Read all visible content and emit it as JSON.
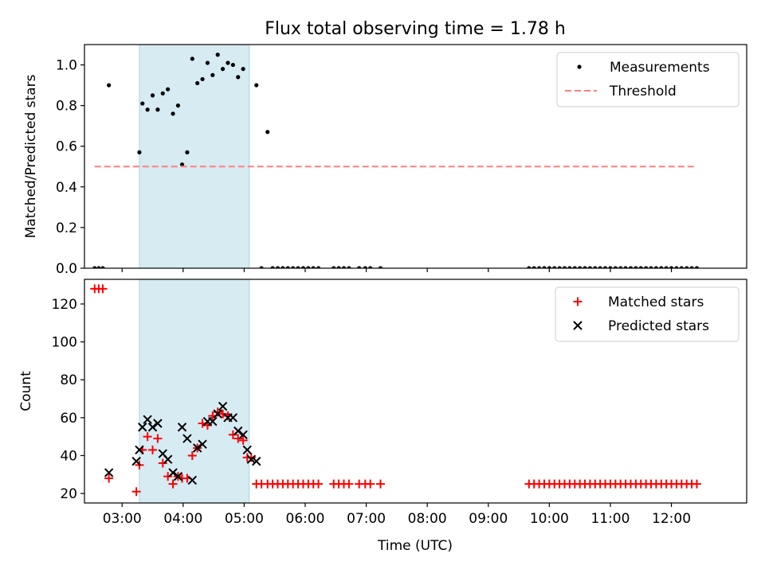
{
  "chart_data": {
    "title": "Flux total observing time = 1.78 h",
    "xlabel": "Time (UTC)",
    "xlim": [
      "02:23",
      "13:14"
    ],
    "xticks": [
      "03:00",
      "04:00",
      "05:00",
      "06:00",
      "07:00",
      "08:00",
      "09:00",
      "10:00",
      "11:00",
      "12:00"
    ],
    "shaded_span": [
      "03:17",
      "05:05"
    ],
    "panels": [
      {
        "type": "scatter",
        "ylabel": "Matched/Predicted stars",
        "ylim": [
          0,
          1.1
        ],
        "yticks": [
          "0.0",
          "0.2",
          "0.4",
          "0.6",
          "0.8",
          "1.0"
        ],
        "legend": "top-right",
        "series": [
          {
            "name": "Measurements",
            "marker": "dot",
            "color": "#000000",
            "x": [
              "02:33",
              "02:37",
              "02:41",
              "02:47",
              "03:17",
              "03:20",
              "03:25",
              "03:30",
              "03:35",
              "03:40",
              "03:45",
              "03:50",
              "03:55",
              "03:59",
              "04:04",
              "04:09",
              "04:14",
              "04:19",
              "04:24",
              "04:29",
              "04:34",
              "04:39",
              "04:44",
              "04:49",
              "04:54",
              "04:59",
              "05:12",
              "05:17",
              "05:23",
              "05:28",
              "05:33",
              "05:38",
              "05:43",
              "05:48",
              "05:53",
              "05:58",
              "06:03",
              "06:08",
              "06:13",
              "06:28",
              "06:33",
              "06:38",
              "06:43",
              "06:53",
              "06:59",
              "07:04",
              "07:14",
              "09:40",
              "09:45",
              "09:50",
              "09:55",
              "10:00",
              "10:05",
              "10:10",
              "10:15",
              "10:20",
              "10:25",
              "10:30",
              "10:35",
              "10:40",
              "10:45",
              "10:50",
              "10:55",
              "11:00",
              "11:05",
              "11:10",
              "11:15",
              "11:20",
              "11:25",
              "11:30",
              "11:35",
              "11:40",
              "11:45",
              "11:50",
              "11:55",
              "12:00",
              "12:05",
              "12:10",
              "12:15",
              "12:20",
              "12:25"
            ],
            "y": [
              0,
              0,
              0,
              0.9,
              0.57,
              0.81,
              0.78,
              0.85,
              0.78,
              0.86,
              0.88,
              0.76,
              0.8,
              0.51,
              0.57,
              1.03,
              0.91,
              0.93,
              1.01,
              0.95,
              1.05,
              0.98,
              1.01,
              1.0,
              0.94,
              0.98,
              0.9,
              0,
              0.67,
              0,
              0,
              0,
              0,
              0,
              0,
              0,
              0,
              0,
              0,
              0,
              0,
              0,
              0,
              0,
              0,
              0,
              0,
              0,
              0,
              0,
              0,
              0,
              0,
              0,
              0,
              0,
              0,
              0,
              0,
              0,
              0,
              0,
              0,
              0,
              0,
              0,
              0,
              0,
              0,
              0,
              0,
              0,
              0,
              0,
              0,
              0,
              0,
              0,
              0,
              0,
              0
            ]
          },
          {
            "name": "Threshold",
            "type": "line",
            "style": "dashed",
            "color": "#ff7f7f",
            "x": [
              "02:33",
              "12:25"
            ],
            "y": [
              0.5,
              0.5
            ]
          }
        ]
      },
      {
        "type": "scatter",
        "ylabel": "Count",
        "ylim": [
          15,
          133
        ],
        "yticks": [
          "20",
          "40",
          "60",
          "80",
          "100",
          "120"
        ],
        "legend": "top-right",
        "series": [
          {
            "name": "Matched stars",
            "marker": "plus",
            "color": "#ff0000",
            "x": [
              "02:33",
              "02:37",
              "02:41",
              "02:47",
              "03:14",
              "03:17",
              "03:20",
              "03:25",
              "03:30",
              "03:35",
              "03:40",
              "03:45",
              "03:50",
              "03:55",
              "03:59",
              "04:04",
              "04:09",
              "04:14",
              "04:19",
              "04:24",
              "04:29",
              "04:34",
              "04:39",
              "04:44",
              "04:49",
              "04:54",
              "04:59",
              "05:03",
              "05:07",
              "05:12",
              "05:17",
              "05:23",
              "05:28",
              "05:33",
              "05:38",
              "05:43",
              "05:48",
              "05:53",
              "05:58",
              "06:03",
              "06:08",
              "06:13",
              "06:28",
              "06:33",
              "06:38",
              "06:43",
              "06:53",
              "06:59",
              "07:04",
              "07:14",
              "09:40",
              "09:45",
              "09:50",
              "09:55",
              "10:00",
              "10:05",
              "10:10",
              "10:15",
              "10:20",
              "10:25",
              "10:30",
              "10:35",
              "10:40",
              "10:45",
              "10:50",
              "10:55",
              "11:00",
              "11:05",
              "11:10",
              "11:15",
              "11:20",
              "11:25",
              "11:30",
              "11:35",
              "11:40",
              "11:45",
              "11:50",
              "11:55",
              "12:00",
              "12:05",
              "12:10",
              "12:15",
              "12:20",
              "12:25"
            ],
            "y": [
              128,
              128,
              128,
              28,
              21,
              35,
              43,
              50,
              43,
              49,
              36,
              29,
              25,
              29,
              28,
              28,
              40,
              44,
              57,
              56,
              61,
              63,
              62,
              61,
              51,
              49,
              48,
              39,
              39,
              25,
              25,
              25,
              25,
              25,
              25,
              25,
              25,
              25,
              25,
              25,
              25,
              25,
              25,
              25,
              25,
              25,
              25,
              25,
              25,
              25,
              25,
              25,
              25,
              25,
              25,
              25,
              25,
              25,
              25,
              25,
              25,
              25,
              25,
              25,
              25,
              25,
              25,
              25,
              25,
              25,
              25,
              25,
              25,
              25,
              25,
              25,
              25,
              25,
              25,
              25,
              25,
              25,
              25,
              25
            ]
          },
          {
            "name": "Predicted stars",
            "marker": "x",
            "color": "#000000",
            "x": [
              "02:47",
              "03:14",
              "03:17",
              "03:20",
              "03:25",
              "03:30",
              "03:35",
              "03:40",
              "03:45",
              "03:50",
              "03:55",
              "03:59",
              "04:04",
              "04:09",
              "04:14",
              "04:19",
              "04:24",
              "04:29",
              "04:34",
              "04:39",
              "04:44",
              "04:49",
              "04:54",
              "04:59",
              "05:03",
              "05:07",
              "05:12"
            ],
            "y": [
              31,
              37,
              43,
              55,
              59,
              55,
              57,
              41,
              38,
              31,
              29,
              55,
              49,
              27,
              44,
              46,
              58,
              58,
              62,
              66,
              60,
              60,
              53,
              51,
              43,
              38,
              37
            ]
          }
        ]
      }
    ]
  }
}
